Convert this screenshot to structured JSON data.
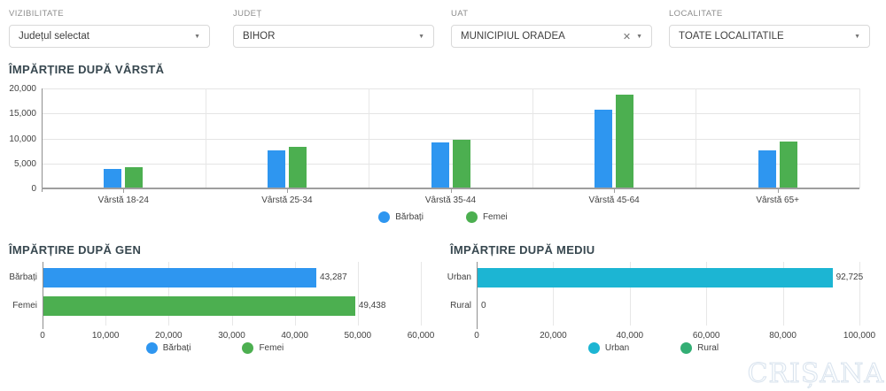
{
  "filters": [
    {
      "label": "VIZIBILITATE",
      "value": "Județul selectat"
    },
    {
      "label": "JUDEȚ",
      "value": "BIHOR"
    },
    {
      "label": "UAT",
      "value": "MUNICIPIUL ORADEA",
      "clearable": true
    },
    {
      "label": "LOCALITATE",
      "value": "TOATE LOCALITATILE"
    }
  ],
  "colors": {
    "male_blue": "#2e96f0",
    "female_green": "#4caf50",
    "urban_cyan": "#1cb5d3",
    "rural_green": "#33ae74"
  },
  "watermark": "CRIȘANA",
  "chart_data": [
    {
      "id": "age",
      "type": "bar",
      "title": "ÎMPĂRȚIRE DUPĂ VÂRSTĂ",
      "categories": [
        "Vârstă 18-24",
        "Vârstă 25-34",
        "Vârstă 35-44",
        "Vârstă 45-64",
        "Vârstă 65+"
      ],
      "series": [
        {
          "name": "Bărbați",
          "color": "#2e96f0",
          "values": [
            3700,
            7500,
            9100,
            15600,
            7400
          ]
        },
        {
          "name": "Femei",
          "color": "#4caf50",
          "values": [
            4100,
            8100,
            9500,
            18500,
            9200
          ]
        }
      ],
      "ylim": [
        0,
        20000
      ],
      "yticks": [
        "0",
        "5,000",
        "10,000",
        "15,000",
        "20,000"
      ],
      "grid": true,
      "legend_position": "bottom"
    },
    {
      "id": "gen",
      "type": "bar",
      "orientation": "horizontal",
      "title": "ÎMPĂRȚIRE DUPĂ GEN",
      "categories": [
        "Bărbați",
        "Femei"
      ],
      "values": [
        43287,
        49438
      ],
      "value_labels": [
        "43,287",
        "49,438"
      ],
      "bar_colors": [
        "#2e96f0",
        "#4caf50"
      ],
      "xlim": [
        0,
        60000
      ],
      "xticks": [
        "0",
        "10,000",
        "20,000",
        "30,000",
        "40,000",
        "50,000",
        "60,000"
      ],
      "grid": true,
      "legend": [
        {
          "name": "Bărbați",
          "color": "#2e96f0"
        },
        {
          "name": "Femei",
          "color": "#4caf50"
        }
      ],
      "legend_position": "bottom"
    },
    {
      "id": "mediu",
      "type": "bar",
      "orientation": "horizontal",
      "title": "ÎMPĂRȚIRE DUPĂ MEDIU",
      "categories": [
        "Urban",
        "Rural"
      ],
      "values": [
        92725,
        0
      ],
      "value_labels": [
        "92,725",
        "0"
      ],
      "bar_colors": [
        "#1cb5d3",
        "#33ae74"
      ],
      "xlim": [
        0,
        100000
      ],
      "xticks": [
        "0",
        "20,000",
        "40,000",
        "60,000",
        "80,000",
        "100,000"
      ],
      "grid": true,
      "legend": [
        {
          "name": "Urban",
          "color": "#1cb5d3"
        },
        {
          "name": "Rural",
          "color": "#33ae74"
        }
      ],
      "legend_position": "bottom"
    }
  ]
}
